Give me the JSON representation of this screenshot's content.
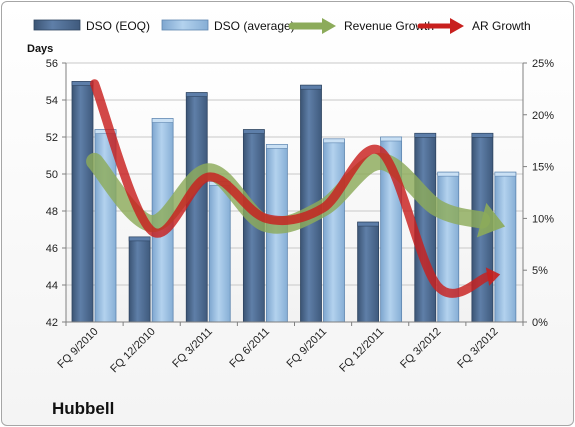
{
  "chart_data": {
    "type": "bar",
    "title": "",
    "brand": "Hubbell",
    "ylabel": "Days",
    "categories": [
      "FQ 9/2010",
      "FQ 12/2010",
      "FQ 3/2011",
      "FQ 6/2011",
      "FQ 9/2011",
      "FQ 12/2011",
      "FQ 3/2012",
      "FQ 3/2012"
    ],
    "ylim": [
      42,
      56
    ],
    "y_ticks": [
      "42",
      "44",
      "46",
      "48",
      "50",
      "52",
      "54",
      "56"
    ],
    "y2lim": [
      0,
      25
    ],
    "y2_ticks": [
      "0%",
      "5%",
      "10%",
      "15%",
      "20%",
      "25%"
    ],
    "legend_position": "top",
    "grid": true,
    "series": [
      {
        "name": "DSO (EOQ)",
        "kind": "bar",
        "axis": "left",
        "color": "#4f6d96",
        "values": [
          55.0,
          46.6,
          54.4,
          52.4,
          54.8,
          47.4,
          52.2,
          52.2
        ]
      },
      {
        "name": "DSO (average)",
        "kind": "bar",
        "axis": "left",
        "color": "#9dc1e2",
        "values": [
          52.4,
          53.0,
          49.6,
          51.6,
          51.9,
          52.0,
          50.1,
          50.1
        ]
      },
      {
        "name": "Revenue Growth",
        "kind": "line-arrow",
        "axis": "right",
        "color": "#8cab5a",
        "values": [
          15.5,
          9.5,
          14.5,
          9.5,
          11.0,
          15.5,
          11.0,
          9.5
        ]
      },
      {
        "name": "AR Growth",
        "kind": "line-arrow",
        "axis": "right",
        "color": "#c8201e",
        "values": [
          23.0,
          8.8,
          14.0,
          10.0,
          11.0,
          16.5,
          3.5,
          4.5
        ]
      }
    ]
  }
}
